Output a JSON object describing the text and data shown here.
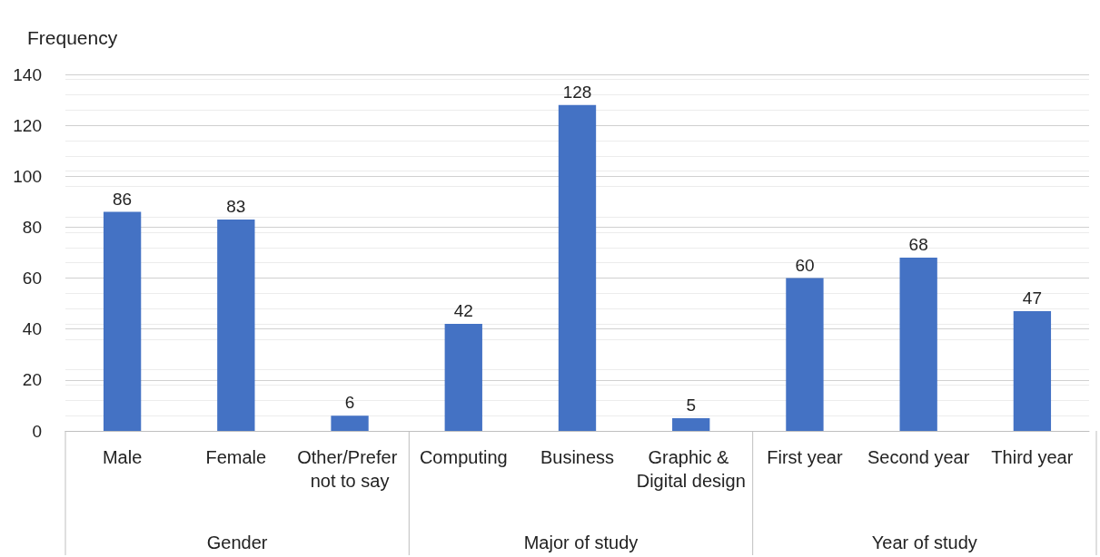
{
  "chart_data": {
    "type": "bar",
    "ylabel": "Frequency",
    "categories": [
      "Male",
      "Female",
      "Other/Prefer not to say",
      "Computing",
      "Business",
      "Graphic & Digital design",
      "First year",
      "Second year",
      "Third year"
    ],
    "values": [
      86,
      83,
      6,
      42,
      128,
      5,
      60,
      68,
      47
    ],
    "color": "#4472c4",
    "ylim": [
      0,
      140
    ],
    "yticks": [
      0,
      20,
      40,
      60,
      80,
      100,
      120,
      140
    ],
    "grid": "y",
    "data_labels": true,
    "annotations": [
      "Gender",
      "Major of study",
      "Year of study"
    ]
  }
}
